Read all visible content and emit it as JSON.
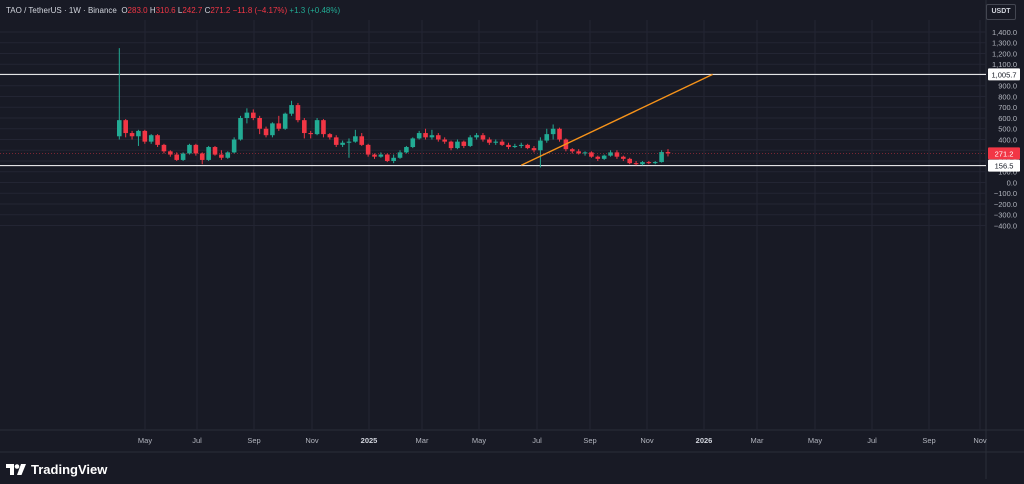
{
  "header": {
    "symbol": "TAO / TetherUS · 1W · Binance",
    "o_label": "O",
    "o_val": "283.0",
    "h_label": "H",
    "h_val": "310.6",
    "l_label": "L",
    "l_val": "242.7",
    "c_label": "C",
    "c_val": "271.2",
    "change": "−11.8 (−4.17%)",
    "change2": "+1.3 (+0.48%)"
  },
  "currency": "USDT",
  "brand": "TradingView",
  "colors": {
    "background": "#181a25",
    "up": "#22ab94",
    "down": "#f23645",
    "trendline": "#f7931a",
    "hline": "#ffffff",
    "grid": "#232533",
    "axis_text": "#b2b5be"
  },
  "chart_data": {
    "type": "candlestick",
    "x_axis": {
      "ticks": [
        "May",
        "Jul",
        "Sep",
        "Nov",
        "2025",
        "Mar",
        "May",
        "Jul",
        "Sep",
        "Nov",
        "2026",
        "Mar",
        "May",
        "Jul",
        "Sep",
        "Nov"
      ],
      "bold_ticks": [
        "2025",
        "2026"
      ]
    },
    "y_axis": {
      "ticks": [
        "1,400.0",
        "1,300.0",
        "1,200.0",
        "1,100.0",
        "1,000.0",
        "900.0",
        "800.0",
        "700.0",
        "600.0",
        "500.0",
        "400.0",
        "300.0",
        "200.0",
        "100.0",
        "0.0",
        "−100.0",
        "−200.0",
        "−300.0",
        "−400.0"
      ],
      "range": [
        -480,
        1480
      ]
    },
    "horizontal_lines": [
      {
        "value": 1005.7,
        "label": "1,005.7"
      },
      {
        "value": 156.5,
        "label": "156.5"
      }
    ],
    "current_price": {
      "value": 271.2,
      "label": "271.2"
    },
    "trendline": {
      "from": {
        "week": 63,
        "price": 160
      },
      "to": {
        "week": 93,
        "price": 1005.7
      }
    },
    "first_candle_date": "2024-04-01",
    "candles": [
      {
        "o": 430,
        "h": 1250,
        "l": 400,
        "c": 580
      },
      {
        "o": 580,
        "h": 590,
        "l": 420,
        "c": 460
      },
      {
        "o": 460,
        "h": 480,
        "l": 400,
        "c": 430
      },
      {
        "o": 430,
        "h": 490,
        "l": 340,
        "c": 480
      },
      {
        "o": 480,
        "h": 490,
        "l": 360,
        "c": 380
      },
      {
        "o": 380,
        "h": 450,
        "l": 360,
        "c": 440
      },
      {
        "o": 440,
        "h": 450,
        "l": 330,
        "c": 350
      },
      {
        "o": 350,
        "h": 360,
        "l": 270,
        "c": 290
      },
      {
        "o": 290,
        "h": 300,
        "l": 240,
        "c": 260
      },
      {
        "o": 260,
        "h": 280,
        "l": 200,
        "c": 210
      },
      {
        "o": 210,
        "h": 280,
        "l": 200,
        "c": 270
      },
      {
        "o": 270,
        "h": 360,
        "l": 260,
        "c": 350
      },
      {
        "o": 350,
        "h": 360,
        "l": 250,
        "c": 270
      },
      {
        "o": 270,
        "h": 280,
        "l": 170,
        "c": 210
      },
      {
        "o": 210,
        "h": 340,
        "l": 200,
        "c": 330
      },
      {
        "o": 330,
        "h": 340,
        "l": 250,
        "c": 260
      },
      {
        "o": 260,
        "h": 300,
        "l": 210,
        "c": 230
      },
      {
        "o": 230,
        "h": 290,
        "l": 220,
        "c": 280
      },
      {
        "o": 280,
        "h": 420,
        "l": 270,
        "c": 400
      },
      {
        "o": 400,
        "h": 620,
        "l": 390,
        "c": 600
      },
      {
        "o": 600,
        "h": 690,
        "l": 550,
        "c": 650
      },
      {
        "o": 650,
        "h": 680,
        "l": 580,
        "c": 600
      },
      {
        "o": 600,
        "h": 620,
        "l": 450,
        "c": 500
      },
      {
        "o": 500,
        "h": 520,
        "l": 420,
        "c": 440
      },
      {
        "o": 440,
        "h": 560,
        "l": 420,
        "c": 550
      },
      {
        "o": 550,
        "h": 620,
        "l": 480,
        "c": 500
      },
      {
        "o": 500,
        "h": 650,
        "l": 490,
        "c": 640
      },
      {
        "o": 640,
        "h": 760,
        "l": 620,
        "c": 720
      },
      {
        "o": 720,
        "h": 740,
        "l": 560,
        "c": 580
      },
      {
        "o": 580,
        "h": 600,
        "l": 410,
        "c": 460
      },
      {
        "o": 460,
        "h": 480,
        "l": 410,
        "c": 450
      },
      {
        "o": 450,
        "h": 600,
        "l": 440,
        "c": 580
      },
      {
        "o": 580,
        "h": 590,
        "l": 420,
        "c": 450
      },
      {
        "o": 450,
        "h": 460,
        "l": 400,
        "c": 420
      },
      {
        "o": 420,
        "h": 440,
        "l": 330,
        "c": 350
      },
      {
        "o": 350,
        "h": 390,
        "l": 330,
        "c": 370
      },
      {
        "o": 370,
        "h": 410,
        "l": 230,
        "c": 380
      },
      {
        "o": 380,
        "h": 490,
        "l": 370,
        "c": 430
      },
      {
        "o": 430,
        "h": 460,
        "l": 340,
        "c": 350
      },
      {
        "o": 350,
        "h": 360,
        "l": 240,
        "c": 260
      },
      {
        "o": 260,
        "h": 270,
        "l": 220,
        "c": 240
      },
      {
        "o": 240,
        "h": 280,
        "l": 230,
        "c": 260
      },
      {
        "o": 260,
        "h": 270,
        "l": 190,
        "c": 200
      },
      {
        "o": 200,
        "h": 260,
        "l": 180,
        "c": 230
      },
      {
        "o": 230,
        "h": 300,
        "l": 220,
        "c": 280
      },
      {
        "o": 280,
        "h": 340,
        "l": 270,
        "c": 330
      },
      {
        "o": 330,
        "h": 420,
        "l": 320,
        "c": 410
      },
      {
        "o": 410,
        "h": 480,
        "l": 400,
        "c": 460
      },
      {
        "o": 460,
        "h": 500,
        "l": 400,
        "c": 420
      },
      {
        "o": 420,
        "h": 490,
        "l": 400,
        "c": 440
      },
      {
        "o": 440,
        "h": 460,
        "l": 380,
        "c": 400
      },
      {
        "o": 400,
        "h": 420,
        "l": 360,
        "c": 380
      },
      {
        "o": 380,
        "h": 390,
        "l": 300,
        "c": 320
      },
      {
        "o": 320,
        "h": 400,
        "l": 310,
        "c": 380
      },
      {
        "o": 380,
        "h": 390,
        "l": 320,
        "c": 340
      },
      {
        "o": 340,
        "h": 440,
        "l": 330,
        "c": 420
      },
      {
        "o": 420,
        "h": 460,
        "l": 400,
        "c": 440
      },
      {
        "o": 440,
        "h": 460,
        "l": 380,
        "c": 400
      },
      {
        "o": 400,
        "h": 420,
        "l": 350,
        "c": 370
      },
      {
        "o": 370,
        "h": 400,
        "l": 350,
        "c": 380
      },
      {
        "o": 380,
        "h": 400,
        "l": 340,
        "c": 350
      },
      {
        "o": 350,
        "h": 370,
        "l": 310,
        "c": 330
      },
      {
        "o": 330,
        "h": 360,
        "l": 320,
        "c": 340
      },
      {
        "o": 340,
        "h": 370,
        "l": 320,
        "c": 350
      },
      {
        "o": 350,
        "h": 360,
        "l": 310,
        "c": 320
      },
      {
        "o": 320,
        "h": 340,
        "l": 280,
        "c": 300
      },
      {
        "o": 300,
        "h": 420,
        "l": 140,
        "c": 390
      },
      {
        "o": 390,
        "h": 500,
        "l": 370,
        "c": 450
      },
      {
        "o": 450,
        "h": 540,
        "l": 400,
        "c": 500
      },
      {
        "o": 500,
        "h": 510,
        "l": 380,
        "c": 400
      },
      {
        "o": 400,
        "h": 410,
        "l": 290,
        "c": 310
      },
      {
        "o": 310,
        "h": 320,
        "l": 270,
        "c": 290
      },
      {
        "o": 290,
        "h": 310,
        "l": 260,
        "c": 270
      },
      {
        "o": 270,
        "h": 290,
        "l": 250,
        "c": 280
      },
      {
        "o": 280,
        "h": 290,
        "l": 230,
        "c": 240
      },
      {
        "o": 240,
        "h": 250,
        "l": 200,
        "c": 220
      },
      {
        "o": 220,
        "h": 260,
        "l": 210,
        "c": 250
      },
      {
        "o": 250,
        "h": 300,
        "l": 240,
        "c": 280
      },
      {
        "o": 280,
        "h": 300,
        "l": 220,
        "c": 240
      },
      {
        "o": 240,
        "h": 250,
        "l": 200,
        "c": 220
      },
      {
        "o": 220,
        "h": 230,
        "l": 170,
        "c": 180
      },
      {
        "o": 180,
        "h": 200,
        "l": 160,
        "c": 170
      },
      {
        "o": 170,
        "h": 200,
        "l": 160,
        "c": 190
      },
      {
        "o": 190,
        "h": 200,
        "l": 170,
        "c": 180
      },
      {
        "o": 180,
        "h": 200,
        "l": 170,
        "c": 190
      },
      {
        "o": 190,
        "h": 300,
        "l": 185,
        "c": 283
      },
      {
        "o": 283,
        "h": 310.6,
        "l": 242.7,
        "c": 271.2
      }
    ]
  }
}
